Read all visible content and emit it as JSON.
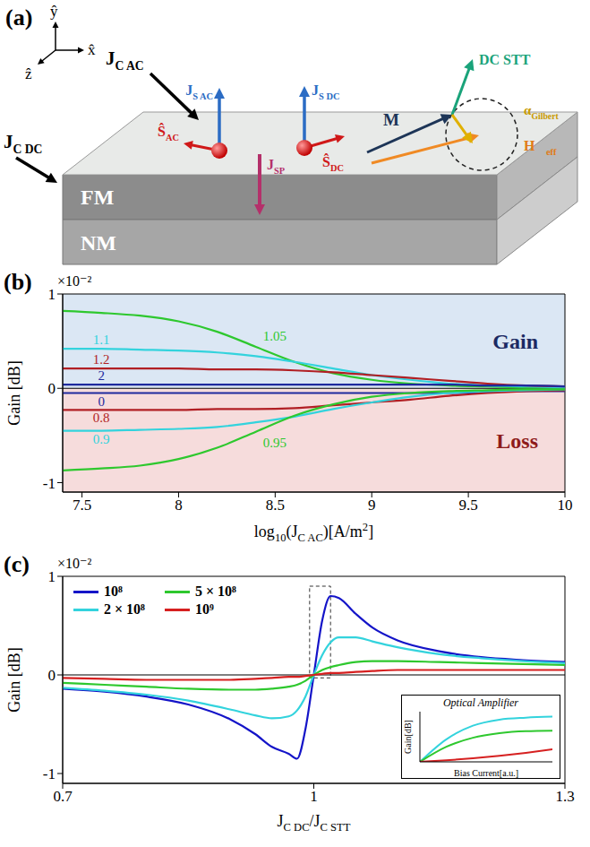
{
  "diagram": {
    "label": "(a)",
    "axes": {
      "x": "x̂",
      "y": "ŷ",
      "z": "ẑ"
    },
    "layers": [
      "FM",
      "NM"
    ],
    "labels": {
      "jc_ac": [
        {
          "text": "J"
        },
        {
          "text": "C AC",
          "sub": true
        }
      ],
      "jc_dc": [
        {
          "text": "J"
        },
        {
          "text": "C DC",
          "sub": true
        }
      ],
      "js_ac": [
        {
          "text": "J"
        },
        {
          "text": "S AC",
          "sub": true
        }
      ],
      "s_ac": [
        {
          "text": "Ŝ"
        },
        {
          "text": "AC",
          "sub": true
        }
      ],
      "js_dc": [
        {
          "text": "J"
        },
        {
          "text": "S DC",
          "sub": true
        }
      ],
      "s_dc": [
        {
          "text": "Ŝ"
        },
        {
          "text": "DC",
          "sub": true
        }
      ],
      "m": [
        {
          "text": "M⃗"
        }
      ],
      "dc_stt": [
        {
          "text": "DC STT"
        }
      ],
      "alpha": [
        {
          "text": "α"
        },
        {
          "text": "Gilbert",
          "sub": true
        }
      ],
      "h_eff": [
        {
          "text": "H⃗"
        },
        {
          "text": "eff",
          "sub": true
        }
      ],
      "j_sp": [
        {
          "text": "J"
        },
        {
          "text": "SP",
          "sub": true
        }
      ]
    }
  },
  "chart_data": [
    {
      "type": "line",
      "title": "(b)",
      "y_multiplier": "×10⁻²",
      "x_label": [
        {
          "text": "log"
        },
        {
          "text": "10",
          "sub": true
        },
        {
          "text": "(J"
        },
        {
          "text": "C AC",
          "sub": true
        },
        {
          "text": ")[A/m"
        },
        {
          "text": "2",
          "sup": true
        },
        {
          "text": "]"
        }
      ],
      "y_label": "Gain [dB]",
      "xlim": [
        7.4,
        10
      ],
      "xticks": [
        7.5,
        8,
        8.5,
        9,
        9.5,
        10
      ],
      "ylim": [
        -1.1,
        1
      ],
      "yticks": [
        -1,
        0,
        1
      ],
      "baseline": 0,
      "regions": [
        {
          "label": "Gain",
          "range": [
            0,
            1
          ],
          "color": "#dbe7f4"
        },
        {
          "label": "Loss",
          "range": [
            -1.1,
            0
          ],
          "color": "#f6dcdc"
        }
      ],
      "x": [
        7.4,
        7.6,
        7.8,
        8,
        8.2,
        8.4,
        8.6,
        8.8,
        9,
        9.2,
        9.4,
        9.6,
        9.8,
        10
      ],
      "series": [
        {
          "name": "1.05",
          "color": "#2ec82e",
          "values": [
            0.82,
            0.8,
            0.77,
            0.71,
            0.6,
            0.44,
            0.28,
            0.16,
            0.09,
            0.05,
            0.03,
            0.02,
            0.01,
            0.01
          ]
        },
        {
          "name": "1.1",
          "color": "#33d3dd",
          "values": [
            0.42,
            0.42,
            0.41,
            0.4,
            0.38,
            0.34,
            0.28,
            0.21,
            0.14,
            0.09,
            0.05,
            0.03,
            0.02,
            0.01
          ]
        },
        {
          "name": "1.2",
          "color": "#b11f24",
          "values": [
            0.21,
            0.21,
            0.21,
            0.21,
            0.2,
            0.2,
            0.19,
            0.17,
            0.14,
            0.11,
            0.08,
            0.05,
            0.03,
            0.02
          ]
        },
        {
          "name": "2",
          "color": "#1f2a9e",
          "values": [
            0.04,
            0.04,
            0.04,
            0.04,
            0.04,
            0.04,
            0.04,
            0.04,
            0.04,
            0.04,
            0.04,
            0.03,
            0.03,
            0.02
          ]
        },
        {
          "name": "0",
          "color": "#1f2a9e",
          "values": [
            -0.05,
            -0.05,
            -0.05,
            -0.05,
            -0.05,
            -0.05,
            -0.05,
            -0.05,
            -0.05,
            -0.05,
            -0.05,
            -0.04,
            -0.03,
            -0.03
          ]
        },
        {
          "name": "0.8",
          "color": "#b11f24",
          "values": [
            -0.23,
            -0.23,
            -0.23,
            -0.23,
            -0.22,
            -0.22,
            -0.21,
            -0.18,
            -0.15,
            -0.12,
            -0.08,
            -0.05,
            -0.03,
            -0.02
          ]
        },
        {
          "name": "0.9",
          "color": "#33d3dd",
          "values": [
            -0.45,
            -0.45,
            -0.44,
            -0.43,
            -0.41,
            -0.36,
            -0.3,
            -0.22,
            -0.15,
            -0.09,
            -0.05,
            -0.03,
            -0.02,
            -0.01
          ]
        },
        {
          "name": "0.95",
          "color": "#2ec82e",
          "values": [
            -0.87,
            -0.85,
            -0.82,
            -0.75,
            -0.63,
            -0.46,
            -0.29,
            -0.17,
            -0.09,
            -0.05,
            -0.03,
            -0.02,
            -0.01,
            -0.01
          ]
        }
      ]
    },
    {
      "type": "line",
      "title": "(c)",
      "y_multiplier": "×10⁻²",
      "x_label": [
        {
          "text": "J"
        },
        {
          "text": "C DC",
          "sub": true
        },
        {
          "text": "/J"
        },
        {
          "text": "C STT",
          "sub": true
        }
      ],
      "y_label": "Gain [dB]",
      "xlim": [
        0.7,
        1.3
      ],
      "xticks": [
        0.7,
        1,
        1.3
      ],
      "ylim": [
        -1.1,
        1
      ],
      "yticks": [
        -1,
        0,
        1
      ],
      "baseline": 0,
      "legend": "upper left",
      "highlight_box": {
        "x": [
          0.995,
          1.02
        ],
        "y": [
          -0.03,
          0.9
        ]
      },
      "x": [
        0.7,
        0.75,
        0.8,
        0.85,
        0.9,
        0.93,
        0.95,
        0.97,
        0.98,
        0.99,
        1,
        1.01,
        1.02,
        1.03,
        1.05,
        1.07,
        1.1,
        1.15,
        1.2,
        1.25,
        1.3
      ],
      "series": [
        {
          "name": "10⁸",
          "color": "#1414c8",
          "values": [
            -0.14,
            -0.17,
            -0.22,
            -0.3,
            -0.45,
            -0.6,
            -0.73,
            -0.8,
            -0.85,
            -0.55,
            0,
            0.55,
            0.8,
            0.78,
            0.62,
            0.48,
            0.35,
            0.24,
            0.18,
            0.15,
            0.13
          ]
        },
        {
          "name": "2 × 10⁸",
          "color": "#33d3dd",
          "values": [
            -0.13,
            -0.16,
            -0.2,
            -0.26,
            -0.35,
            -0.41,
            -0.44,
            -0.42,
            -0.36,
            -0.22,
            0,
            0.2,
            0.33,
            0.38,
            0.38,
            0.34,
            0.28,
            0.21,
            0.17,
            0.14,
            0.12
          ]
        },
        {
          "name": "5 × 10⁸",
          "color": "#2ec82e",
          "values": [
            -0.08,
            -0.1,
            -0.12,
            -0.14,
            -0.15,
            -0.15,
            -0.14,
            -0.12,
            -0.1,
            -0.06,
            0,
            0.05,
            0.08,
            0.1,
            0.13,
            0.14,
            0.14,
            0.13,
            0.12,
            0.11,
            0.1
          ]
        },
        {
          "name": "10⁹",
          "color": "#d62020",
          "values": [
            -0.03,
            -0.04,
            -0.05,
            -0.05,
            -0.05,
            -0.04,
            -0.03,
            -0.02,
            -0.02,
            -0.01,
            0,
            0.01,
            0.02,
            0.02,
            0.03,
            0.04,
            0.05,
            0.05,
            0.05,
            0.05,
            0.05
          ]
        }
      ],
      "inset": {
        "type": "line",
        "title": "Optical Amplifier",
        "x_label": "Bias Current[a.u.]",
        "y_label": "Gain[dB]",
        "tick_labels": false,
        "xlim": [
          0,
          1
        ],
        "ylim": [
          0,
          1
        ],
        "x": [
          0,
          0.2,
          0.4,
          0.6,
          0.8,
          1
        ],
        "series": [
          {
            "color": "#33d3dd",
            "values": [
              0,
              0.45,
              0.72,
              0.84,
              0.88,
              0.9
            ]
          },
          {
            "color": "#2ec82e",
            "values": [
              0,
              0.3,
              0.48,
              0.57,
              0.61,
              0.62
            ]
          },
          {
            "color": "#d62020",
            "values": [
              0,
              0.03,
              0.07,
              0.12,
              0.18,
              0.25
            ]
          }
        ]
      }
    }
  ]
}
